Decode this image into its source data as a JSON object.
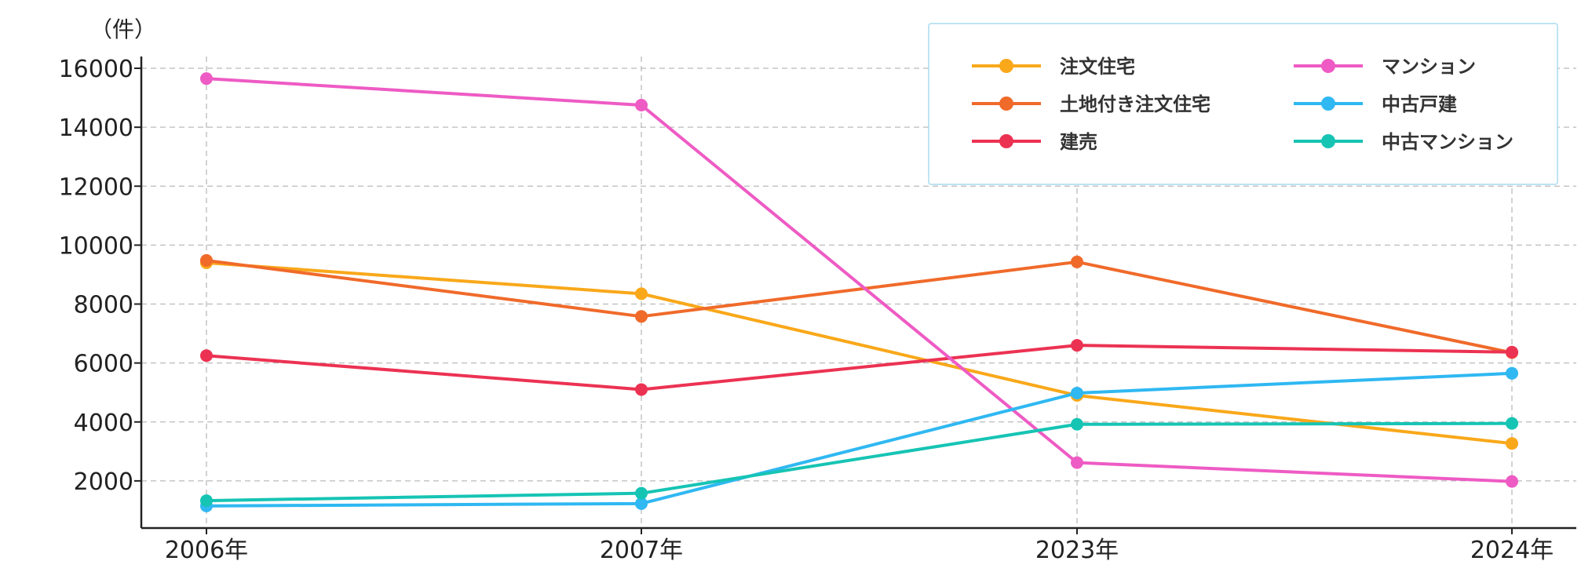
{
  "chart_data": {
    "type": "line",
    "unit_label": "（件）",
    "x": [
      "2006年",
      "2007年",
      "2023年",
      "2024年"
    ],
    "ylim": [
      400,
      16400
    ],
    "yticks": [
      2000,
      4000,
      6000,
      8000,
      10000,
      12000,
      14000,
      16000
    ],
    "grid": true,
    "legend_position": "top-right",
    "series": [
      {
        "name": "注文住宅",
        "color": "#F9A81A",
        "values": [
          9400,
          8350,
          4900,
          3270
        ]
      },
      {
        "name": "土地付き注文住宅",
        "color": "#F06A2A",
        "values": [
          9480,
          7580,
          9430,
          6350
        ]
      },
      {
        "name": "建売",
        "color": "#EC3252",
        "values": [
          6250,
          5100,
          6600,
          6370
        ]
      },
      {
        "name": "マンション",
        "color": "#EE5BC4",
        "values": [
          15650,
          14750,
          2620,
          1980
        ]
      },
      {
        "name": "中古戸建",
        "color": "#2FB8F2",
        "values": [
          1150,
          1230,
          4980,
          5650
        ]
      },
      {
        "name": "中古マンション",
        "color": "#16C4B4",
        "values": [
          1330,
          1580,
          3920,
          3950
        ]
      }
    ]
  }
}
